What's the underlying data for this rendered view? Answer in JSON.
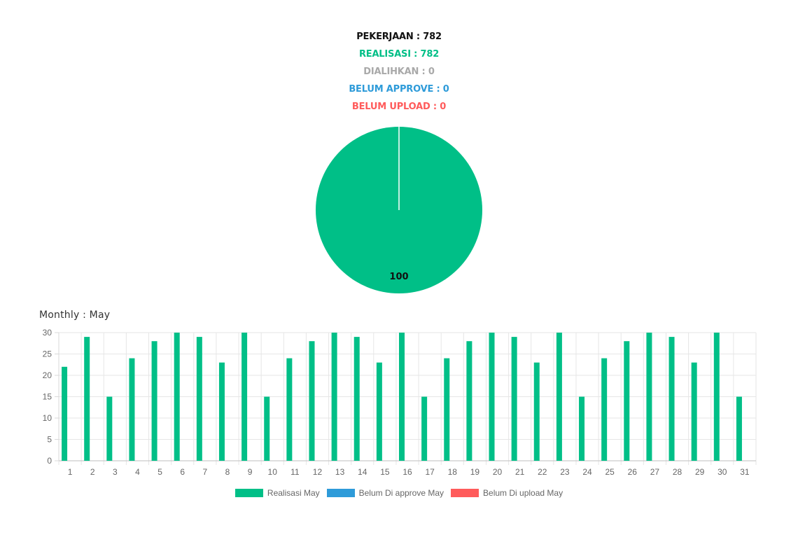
{
  "summary": {
    "pekerjaan": {
      "label": "PEKERJAAN : 782",
      "color": "#111111"
    },
    "realisasi": {
      "label": "REALISASI : 782",
      "color": "#00bf87"
    },
    "dialihkan": {
      "label": "DIALIHKAN : 0",
      "color": "#a9a9a9"
    },
    "belum_approve": {
      "label": "BELUM APPROVE : 0",
      "color": "#2e9bd9"
    },
    "belum_upload": {
      "label": "BELUM UPLOAD : 0",
      "color": "#ff5b5b"
    }
  },
  "monthly": {
    "title": "Monthly : May"
  },
  "colors": {
    "realisasi": "#00bf87",
    "belum_approve": "#2e9bd9",
    "belum_upload": "#ff5b5b"
  },
  "chart_data": [
    {
      "type": "pie",
      "slices": [
        {
          "label": "Realisasi",
          "value": 100,
          "color": "#00bf87"
        }
      ],
      "data_label": "100"
    },
    {
      "type": "bar",
      "title": "Monthly : May",
      "categories": [
        "1",
        "2",
        "3",
        "4",
        "5",
        "6",
        "7",
        "8",
        "9",
        "10",
        "11",
        "12",
        "13",
        "14",
        "15",
        "16",
        "17",
        "18",
        "19",
        "20",
        "21",
        "22",
        "23",
        "24",
        "25",
        "26",
        "27",
        "28",
        "29",
        "30",
        "31"
      ],
      "series": [
        {
          "name": "Realisasi May",
          "color": "#00bf87",
          "values": [
            22,
            29,
            15,
            24,
            28,
            30,
            29,
            23,
            30,
            15,
            24,
            28,
            30,
            29,
            23,
            30,
            15,
            24,
            28,
            30,
            29,
            23,
            30,
            15,
            24,
            28,
            30,
            29,
            23,
            30,
            15
          ]
        },
        {
          "name": "Belum Di approve May",
          "color": "#2e9bd9",
          "values": [
            0,
            0,
            0,
            0,
            0,
            0,
            0,
            0,
            0,
            0,
            0,
            0,
            0,
            0,
            0,
            0,
            0,
            0,
            0,
            0,
            0,
            0,
            0,
            0,
            0,
            0,
            0,
            0,
            0,
            0,
            0
          ]
        },
        {
          "name": "Belum Di upload May",
          "color": "#ff5b5b",
          "values": [
            0,
            0,
            0,
            0,
            0,
            0,
            0,
            0,
            0,
            0,
            0,
            0,
            0,
            0,
            0,
            0,
            0,
            0,
            0,
            0,
            0,
            0,
            0,
            0,
            0,
            0,
            0,
            0,
            0,
            0,
            0
          ]
        }
      ],
      "yticks": [
        "0",
        "5",
        "10",
        "15",
        "20",
        "25",
        "30"
      ],
      "ylim": [
        0,
        30
      ],
      "grid": true,
      "legend_position": "bottom"
    }
  ]
}
